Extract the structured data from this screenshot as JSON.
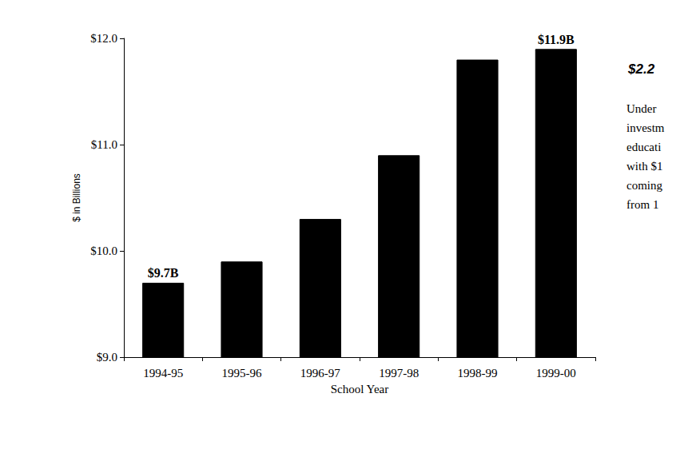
{
  "chart_data": {
    "type": "bar",
    "x_label": "School Year",
    "y_label": "$ in Billions",
    "categories": [
      "1994-95",
      "1995-96",
      "1996-97",
      "1997-98",
      "1998-99",
      "1999-00"
    ],
    "values": [
      9.7,
      9.9,
      10.3,
      10.9,
      11.8,
      11.9
    ],
    "value_labels": [
      "$9.7B",
      null,
      null,
      null,
      null,
      "$11.9B"
    ],
    "data_labels": true,
    "color": "#000000",
    "ylim": [
      9,
      12
    ],
    "yticks": [
      {
        "value": 9,
        "label": "$9.0"
      },
      {
        "value": 10,
        "label": "$10.0"
      },
      {
        "value": 11,
        "label": "$11.0"
      },
      {
        "value": 12,
        "label": "$12.0"
      }
    ],
    "grid": false,
    "side_text": {
      "title": "$2.2",
      "lines": [
        "Under",
        "investm",
        "educati",
        "with $1",
        "coming",
        "from 1"
      ]
    }
  }
}
